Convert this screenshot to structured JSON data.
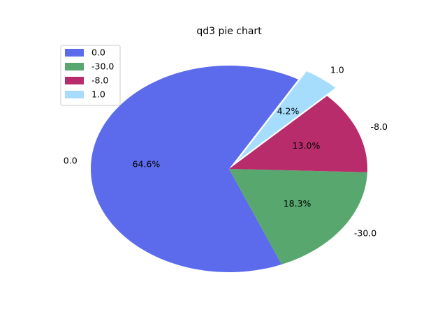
{
  "chart_data": {
    "type": "pie",
    "title": "qd3 pie chart",
    "slices": [
      {
        "label": "0.0",
        "percent_label": "64.6%",
        "value": 64.6,
        "color": "#5b6bec",
        "explode": false
      },
      {
        "label": "-30.0",
        "percent_label": "18.3%",
        "value": 18.3,
        "color": "#58a76e",
        "explode": false
      },
      {
        "label": "-8.0",
        "percent_label": "13.0%",
        "value": 13.0,
        "color": "#b92c6b",
        "explode": false
      },
      {
        "label": "1.0",
        "percent_label": "4.2%",
        "value": 4.2,
        "color": "#a6ddfd",
        "explode": true
      }
    ],
    "legend": {
      "placement": "top-left",
      "entries": [
        "0.0",
        "-30.0",
        "-8.0",
        "1.0"
      ]
    }
  }
}
